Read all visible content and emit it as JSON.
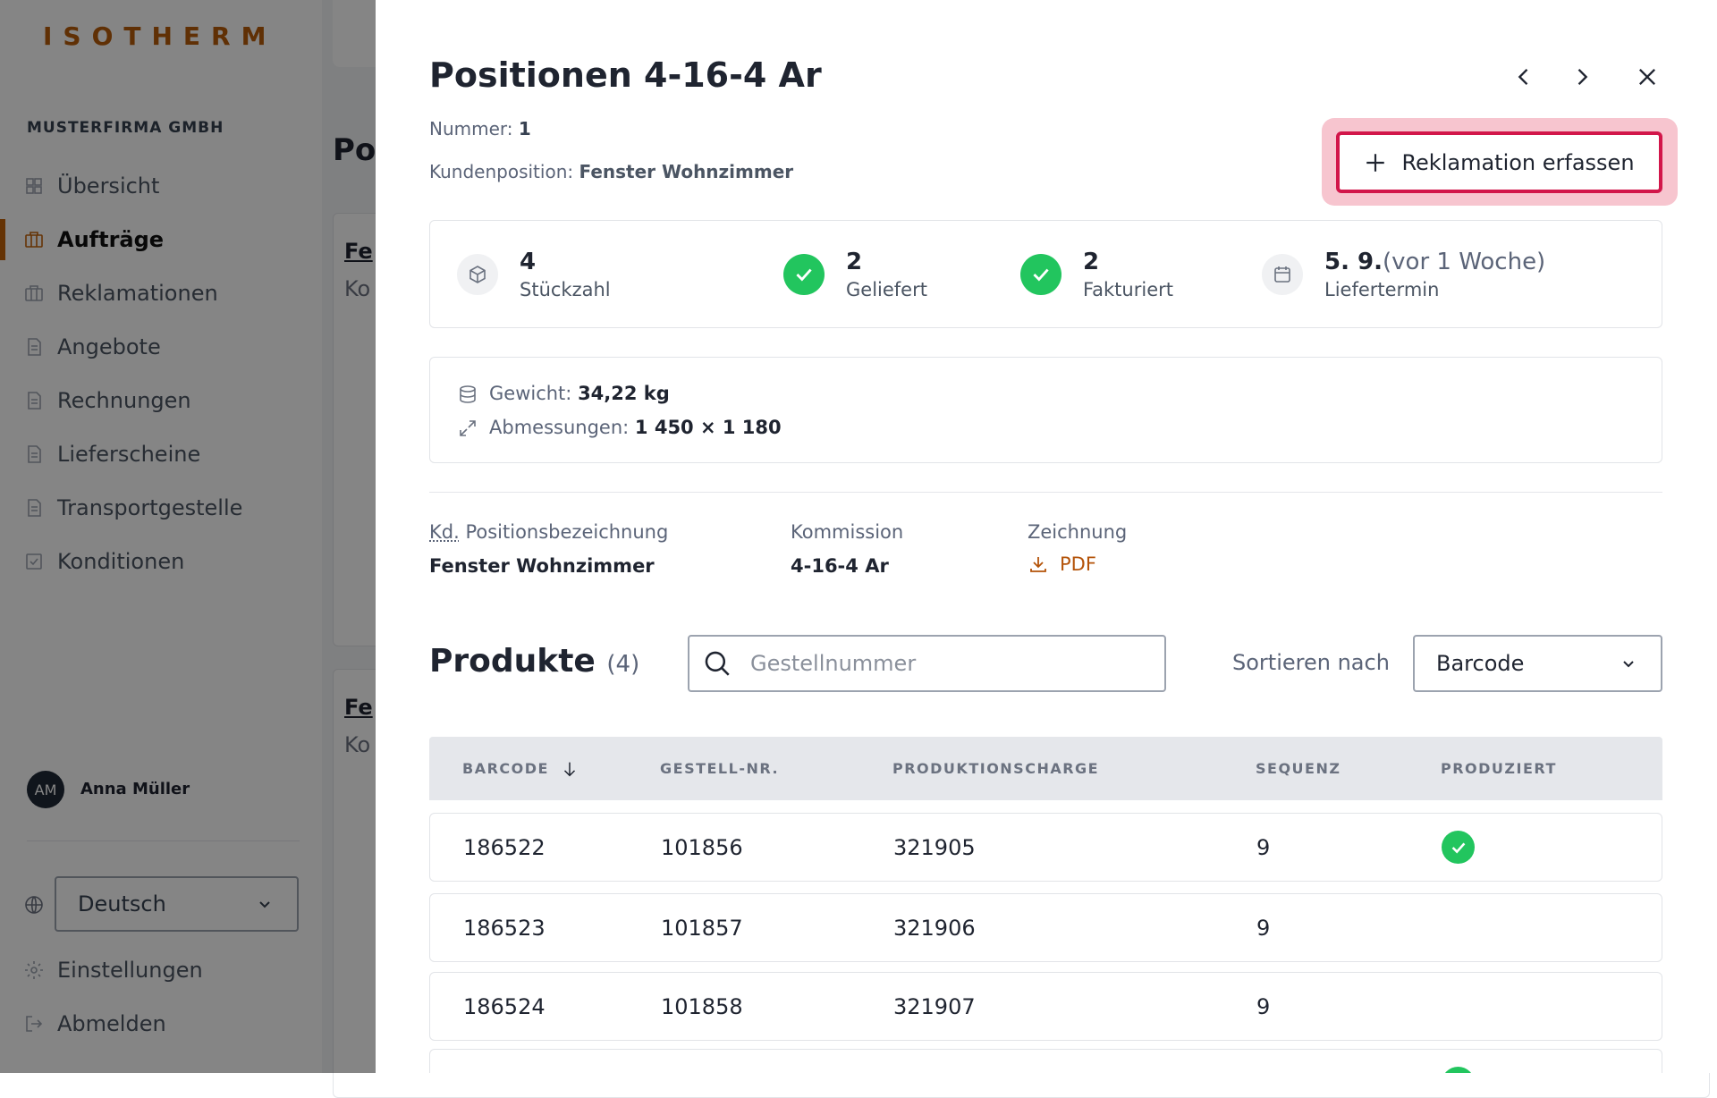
{
  "sidebar": {
    "logo": "ISOTHERM",
    "company": "MUSTERFIRMA GMBH",
    "nav": [
      "Übersicht",
      "Aufträge",
      "Reklamationen",
      "Angebote",
      "Rechnungen",
      "Lieferscheine",
      "Transportgestelle",
      "Konditionen"
    ],
    "active": 1,
    "user": {
      "initials": "AM",
      "name": "Anna Müller"
    },
    "language": "Deutsch",
    "footer": [
      "Einstellungen",
      "Abmelden"
    ]
  },
  "background": {
    "title": "Po",
    "cards": [
      {
        "title": "Fe",
        "sub": "Ko"
      },
      {
        "title": "Fe",
        "sub": "Ko"
      }
    ]
  },
  "panel": {
    "title": "Positionen 4-16-4 Ar",
    "nummer": {
      "label": "Nummer:",
      "value": "1"
    },
    "kundenposition": {
      "label": "Kundenposition:",
      "value": "Fenster Wohnzimmer"
    },
    "button": "Reklamation erfassen",
    "stats": [
      {
        "value": "4",
        "label": "Stückzahl",
        "icon": "box"
      },
      {
        "value": "2",
        "label": "Geliefert",
        "icon": "check"
      },
      {
        "value": "2",
        "label": "Fakturiert",
        "icon": "check"
      },
      {
        "value": "5. 9.",
        "note": "(vor 1 Woche)",
        "label": "Liefertermin",
        "icon": "calendar"
      }
    ],
    "details": [
      {
        "label": "Gewicht:",
        "value": "34,22 kg"
      },
      {
        "label": "Abmessungen:",
        "value": "1 450 × 1 180"
      }
    ],
    "info": [
      {
        "label_abbr": "Kd.",
        "label": "Positionsbezeichnung",
        "value": "Fenster Wohnzimmer"
      },
      {
        "label": "Kommission",
        "value": "4-16-4 Ar"
      },
      {
        "label": "Zeichnung",
        "value": "PDF"
      }
    ],
    "products": {
      "title": "Produkte",
      "count": "(4)",
      "search_placeholder": "Gestellnummer",
      "sort_label": "Sortieren nach",
      "sort_value": "Barcode",
      "headers": [
        "BARCODE",
        "GESTELL-NR.",
        "PRODUKTIONSCHARGE",
        "SEQUENZ",
        "PRODUZIERT"
      ],
      "rows": [
        {
          "cells": [
            "186522",
            "101856",
            "321905",
            "9"
          ],
          "produced": true
        },
        {
          "cells": [
            "186523",
            "101857",
            "321906",
            "9"
          ],
          "produced": false
        },
        {
          "cells": [
            "186524",
            "101858",
            "321907",
            "9"
          ],
          "produced": false
        },
        {
          "cells": [],
          "produced": true
        }
      ]
    }
  }
}
